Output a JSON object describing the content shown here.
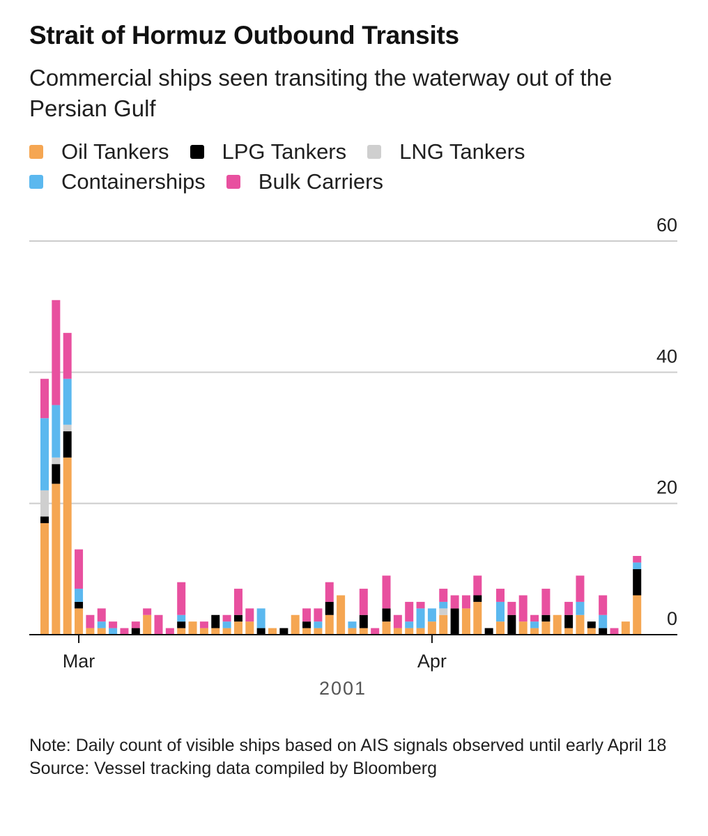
{
  "title": "Strait of Hormuz Outbound Transits",
  "subtitle": "Commercial ships seen transiting the waterway out of the Persian Gulf",
  "legend": [
    {
      "label": "Oil Tankers",
      "color": "#f5a652"
    },
    {
      "label": "LPG Tankers",
      "color": "#000000"
    },
    {
      "label": "LNG Tankers",
      "color": "#cfcfcf"
    },
    {
      "label": "Containerships",
      "color": "#5bb8ef"
    },
    {
      "label": "Bulk Carriers",
      "color": "#e8509f"
    }
  ],
  "note": "Note: Daily count of visible ships based on AIS signals observed until early April 18",
  "source": "Source: Vessel tracking data compiled by Bloomberg",
  "chart_data": {
    "type": "bar",
    "stacked": true,
    "ylim": [
      0,
      60
    ],
    "yticks": [
      0,
      20,
      40,
      60
    ],
    "y_axis_side": "right",
    "grid": true,
    "x_ticks": [
      {
        "label": "Mar",
        "index": 3
      },
      {
        "label": "Apr",
        "index": 34
      }
    ],
    "x_year_label": "2001",
    "series": [
      {
        "name": "Oil Tankers",
        "color": "#f5a652",
        "values": [
          17,
          23,
          27,
          4,
          1,
          1,
          0,
          0,
          0,
          3,
          0,
          0,
          1,
          2,
          1,
          1,
          1,
          2,
          2,
          0,
          1,
          0,
          3,
          1,
          1,
          3,
          6,
          1,
          1,
          0,
          2,
          1,
          1,
          1,
          2,
          3,
          0,
          4,
          5,
          0,
          2,
          0,
          2,
          1,
          2,
          3,
          1,
          3,
          1,
          0,
          0,
          2,
          6
        ]
      },
      {
        "name": "LPG Tankers",
        "color": "#000000",
        "values": [
          1,
          3,
          4,
          1,
          0,
          0,
          0,
          0,
          1,
          0,
          0,
          0,
          1,
          0,
          0,
          2,
          0,
          1,
          0,
          1,
          0,
          1,
          0,
          1,
          0,
          2,
          0,
          0,
          2,
          0,
          2,
          0,
          0,
          0,
          0,
          0,
          4,
          0,
          1,
          1,
          0,
          3,
          0,
          0,
          1,
          0,
          2,
          0,
          1,
          1,
          0,
          0,
          4
        ]
      },
      {
        "name": "LNG Tankers",
        "color": "#cfcfcf",
        "values": [
          4,
          1,
          1,
          0,
          0,
          0,
          0,
          0,
          0,
          0,
          0,
          0,
          0,
          0,
          0,
          0,
          0,
          0,
          0,
          0,
          0,
          0,
          0,
          0,
          0,
          0,
          0,
          0,
          0,
          0,
          0,
          0,
          0,
          0,
          0,
          1,
          0,
          0,
          0,
          0,
          0,
          0,
          0,
          0,
          0,
          0,
          0,
          0,
          0,
          0,
          0,
          0,
          0
        ]
      },
      {
        "name": "Containerships",
        "color": "#5bb8ef",
        "values": [
          11,
          8,
          7,
          2,
          0,
          1,
          1,
          0,
          0,
          0,
          0,
          0,
          1,
          0,
          0,
          0,
          1,
          0,
          0,
          3,
          0,
          0,
          0,
          0,
          1,
          0,
          0,
          1,
          0,
          0,
          0,
          0,
          1,
          3,
          2,
          1,
          0,
          0,
          0,
          0,
          3,
          0,
          0,
          1,
          0,
          0,
          0,
          2,
          0,
          2,
          0,
          0,
          1
        ]
      },
      {
        "name": "Bulk Carriers",
        "color": "#e8509f",
        "values": [
          6,
          16,
          7,
          6,
          2,
          2,
          1,
          1,
          1,
          1,
          3,
          1,
          5,
          0,
          1,
          0,
          1,
          4,
          2,
          0,
          0,
          0,
          0,
          2,
          2,
          3,
          0,
          0,
          4,
          1,
          5,
          2,
          3,
          1,
          0,
          2,
          2,
          2,
          3,
          0,
          2,
          2,
          4,
          1,
          4,
          0,
          2,
          4,
          0,
          3,
          1,
          0,
          1
        ]
      }
    ]
  }
}
